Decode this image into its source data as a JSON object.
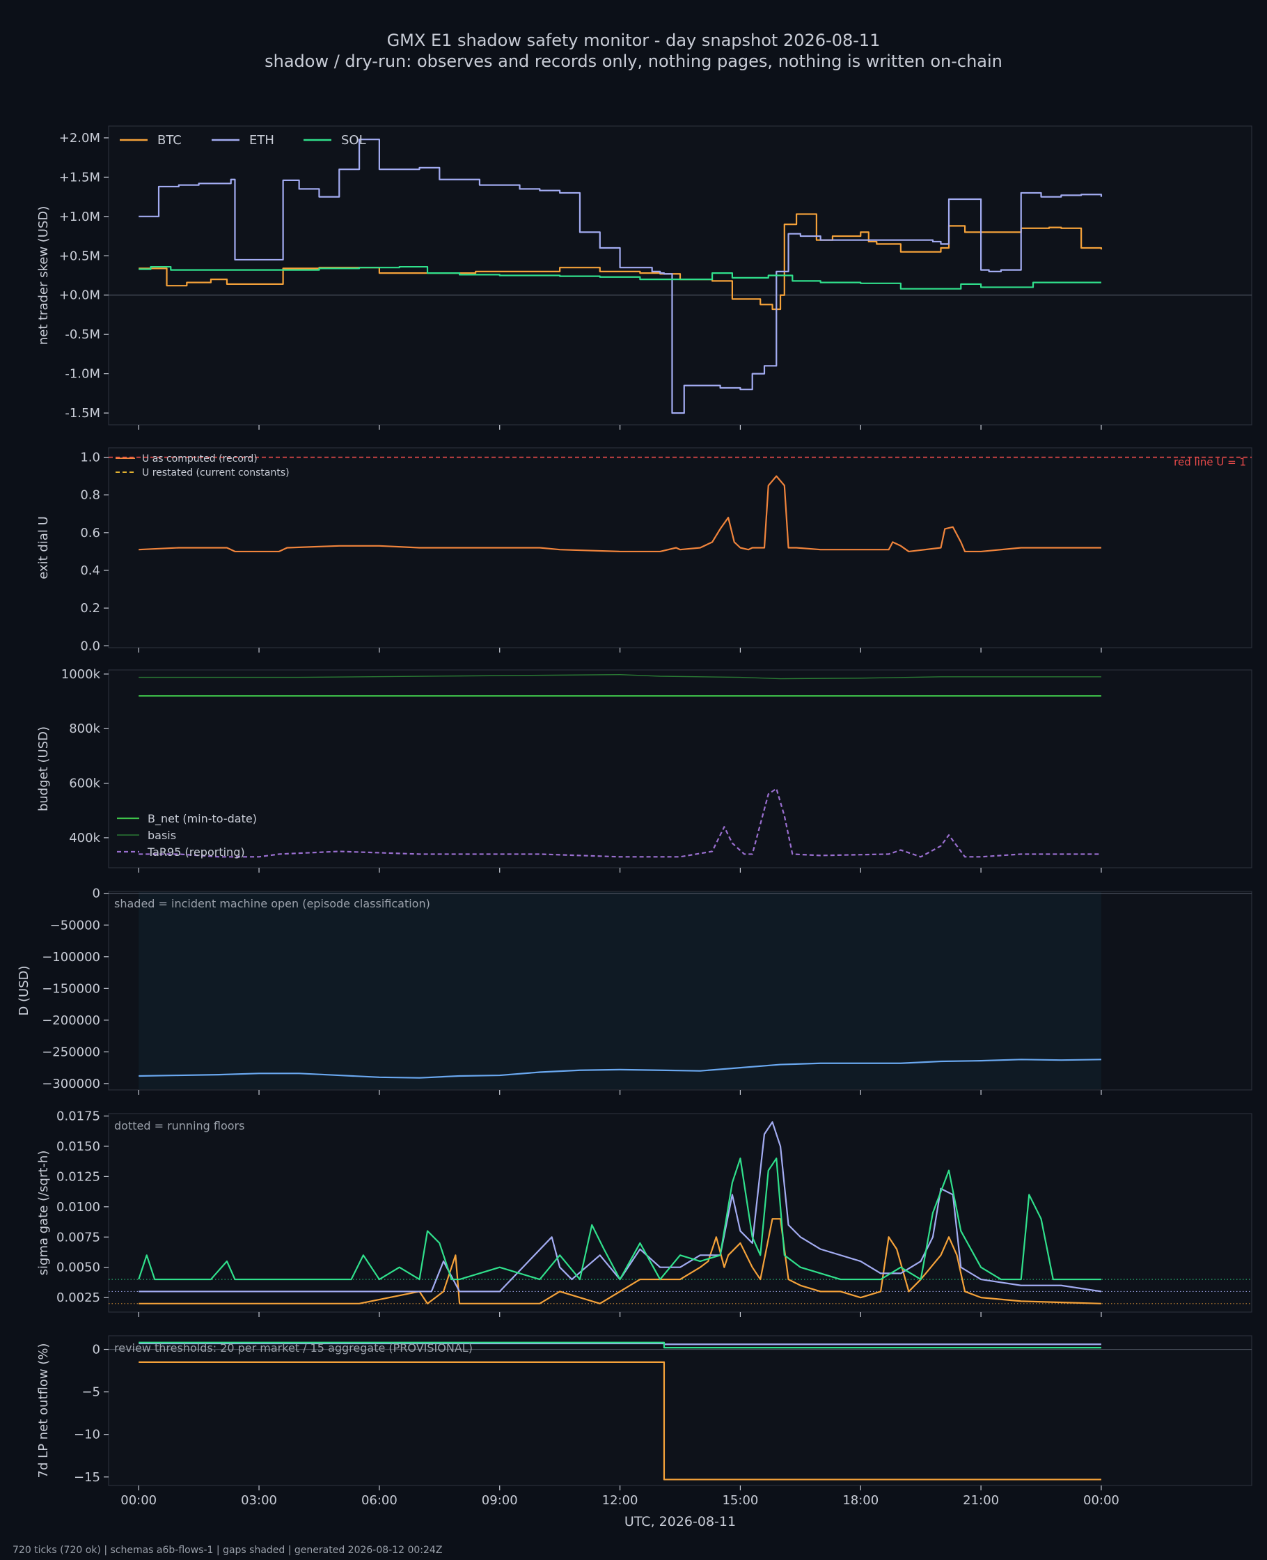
{
  "title": "GMX E1 shadow safety monitor - day snapshot 2026-08-11",
  "subtitle": "shadow / dry-run: observes and records only, nothing pages, nothing is written on-chain",
  "footer": "720 ticks (720 ok) | schemas a6b-flows-1 | gaps shaded | generated 2026-08-12 00:24Z",
  "xaxis": {
    "label": "UTC, 2026-08-11",
    "range_hours": [
      -0.75,
      27.75
    ],
    "ticks_hours": [
      0,
      3,
      6,
      9,
      12,
      15,
      18,
      21,
      24
    ],
    "tick_labels": [
      "00:00",
      "03:00",
      "06:00",
      "09:00",
      "12:00",
      "15:00",
      "18:00",
      "21:00",
      "00:00"
    ]
  },
  "colors": {
    "background": "#0c1018",
    "panel": "#0e121a",
    "frame": "#2a2f3a",
    "text": "#c8ccd6",
    "muted": "#9aa0aa",
    "BTC": "#f5a23a",
    "ETH": "#a3acf2",
    "SOL": "#30e08c",
    "U": "#f0843c",
    "redline": "#e84a4a",
    "restated": "#e0b030",
    "bnet": "#3ec24a",
    "basis": "#2a7a34",
    "tar": "#9a6fd0",
    "D": "#6aa8f0",
    "shade": "#0f1a24"
  },
  "chart_data": [
    {
      "id": "skew",
      "type": "line",
      "ylabel": "net trader skew (USD)",
      "ylim": [
        -1.65,
        2.15
      ],
      "unit": "million USD",
      "yticks": [
        2.0,
        1.5,
        1.0,
        0.5,
        0.0,
        -0.5,
        -1.0,
        -1.5
      ],
      "ytick_labels": [
        "+2.0M",
        "+1.5M",
        "+1.0M",
        "+0.5M",
        "+0.0M",
        "-0.5M",
        "-1.0M",
        "-1.5M"
      ],
      "legend": "top-left, horizontal",
      "zero_line": true,
      "series": [
        {
          "name": "BTC",
          "color_key": "BTC",
          "step": true,
          "x": [
            0,
            0.4,
            0.7,
            1.2,
            1.8,
            2.0,
            2.2,
            3.5,
            3.6,
            4.5,
            6.0,
            7.8,
            8.4,
            9.5,
            10.5,
            11.5,
            12.5,
            13.0,
            13.5,
            14.3,
            14.8,
            15.5,
            15.8,
            16.0,
            16.1,
            16.4,
            16.9,
            17.3,
            17.8,
            18.0,
            18.2,
            18.4,
            19.0,
            19.5,
            20.0,
            20.2,
            20.6,
            21.3,
            22.0,
            22.7,
            23.0,
            23.5,
            24
          ],
          "y": [
            0.34,
            0.34,
            0.12,
            0.16,
            0.2,
            0.2,
            0.14,
            0.14,
            0.34,
            0.35,
            0.28,
            0.28,
            0.3,
            0.3,
            0.35,
            0.3,
            0.28,
            0.27,
            0.2,
            0.18,
            -0.05,
            -0.12,
            -0.18,
            0.0,
            0.9,
            1.03,
            0.7,
            0.75,
            0.75,
            0.8,
            0.68,
            0.65,
            0.55,
            0.55,
            0.6,
            0.88,
            0.8,
            0.8,
            0.85,
            0.86,
            0.85,
            0.6,
            0.58
          ]
        },
        {
          "name": "ETH",
          "color_key": "ETH",
          "step": true,
          "x": [
            0,
            0.4,
            0.5,
            1.0,
            1.5,
            2.3,
            2.4,
            3.4,
            3.6,
            4.0,
            4.5,
            5.0,
            5.5,
            6.0,
            6.5,
            7.0,
            7.5,
            8.5,
            9.5,
            10.0,
            10.5,
            11.0,
            11.5,
            12.0,
            12.8,
            13.0,
            13.1,
            13.3,
            13.6,
            14.5,
            15.0,
            15.3,
            15.6,
            15.9,
            16.2,
            16.5,
            17.0,
            17.5,
            18.0,
            19.0,
            19.8,
            20.0,
            20.2,
            21.0,
            21.2,
            21.5,
            22.0,
            22.5,
            23.0,
            23.5,
            24
          ],
          "y": [
            1.0,
            1.0,
            1.38,
            1.4,
            1.42,
            1.47,
            0.45,
            0.45,
            1.46,
            1.35,
            1.25,
            1.6,
            1.98,
            1.6,
            1.6,
            1.62,
            1.47,
            1.4,
            1.35,
            1.33,
            1.3,
            0.8,
            0.6,
            0.35,
            0.3,
            0.28,
            0.27,
            -1.5,
            -1.15,
            -1.18,
            -1.2,
            -1.0,
            -0.9,
            0.3,
            0.78,
            0.75,
            0.7,
            0.7,
            0.7,
            0.7,
            0.68,
            0.65,
            1.22,
            0.32,
            0.3,
            0.32,
            1.3,
            1.25,
            1.27,
            1.28,
            1.25
          ]
        },
        {
          "name": "SOL",
          "color_key": "SOL",
          "step": true,
          "x": [
            0,
            0.3,
            0.8,
            2.0,
            4.5,
            5.5,
            6.5,
            7.2,
            8.0,
            9.0,
            10.5,
            11.5,
            12.5,
            13.5,
            14.3,
            14.8,
            15.3,
            15.7,
            16.0,
            16.3,
            17.0,
            18.0,
            19.0,
            20.0,
            20.5,
            21.0,
            22.0,
            22.3,
            24
          ],
          "y": [
            0.33,
            0.36,
            0.32,
            0.32,
            0.34,
            0.35,
            0.36,
            0.28,
            0.26,
            0.25,
            0.24,
            0.23,
            0.2,
            0.2,
            0.28,
            0.22,
            0.22,
            0.25,
            0.25,
            0.18,
            0.16,
            0.15,
            0.08,
            0.08,
            0.14,
            0.1,
            0.1,
            0.16,
            0.16
          ]
        }
      ]
    },
    {
      "id": "exitdial",
      "type": "line",
      "ylabel": "exit dial U",
      "ylim": [
        -0.01,
        1.05
      ],
      "yticks": [
        0.0,
        0.2,
        0.4,
        0.6,
        0.8,
        1.0
      ],
      "ytick_labels": [
        "0.0",
        "0.2",
        "0.4",
        "0.6",
        "0.8",
        "1.0"
      ],
      "legend": "top-left",
      "redline": {
        "value": 1.0,
        "label": "red line U = 1"
      },
      "series": [
        {
          "name": "U as computed (record)",
          "color_key": "U",
          "x": [
            0,
            1.0,
            1.5,
            2.2,
            2.4,
            3.5,
            3.7,
            5.0,
            6.0,
            7.0,
            9.0,
            10.0,
            10.5,
            12.0,
            13.0,
            13.4,
            13.5,
            14.0,
            14.3,
            14.5,
            14.7,
            14.85,
            15.0,
            15.2,
            15.3,
            15.6,
            15.7,
            15.9,
            16.1,
            16.2,
            16.4,
            17.0,
            18.0,
            18.7,
            18.8,
            19.0,
            19.2,
            20.0,
            20.1,
            20.3,
            20.5,
            20.6,
            21.0,
            22.0,
            24
          ],
          "y": [
            0.51,
            0.52,
            0.52,
            0.52,
            0.5,
            0.5,
            0.52,
            0.53,
            0.53,
            0.52,
            0.52,
            0.52,
            0.51,
            0.5,
            0.5,
            0.52,
            0.51,
            0.52,
            0.55,
            0.62,
            0.68,
            0.55,
            0.52,
            0.51,
            0.52,
            0.52,
            0.85,
            0.9,
            0.85,
            0.52,
            0.52,
            0.51,
            0.51,
            0.51,
            0.55,
            0.53,
            0.5,
            0.52,
            0.62,
            0.63,
            0.55,
            0.5,
            0.5,
            0.52,
            0.52
          ]
        },
        {
          "name": "U restated (current constants)",
          "color_key": "restated",
          "dashed": true,
          "x": [],
          "y": []
        }
      ]
    },
    {
      "id": "budget",
      "type": "line",
      "ylabel": "budget (USD)",
      "ylim": [
        290000,
        1015000
      ],
      "yticks": [
        1000000,
        800000,
        600000,
        400000
      ],
      "ytick_labels": [
        "1000k",
        "800k",
        "600k",
        "400k"
      ],
      "legend": "bottom-left",
      "series": [
        {
          "name": "B_net (min-to-date)",
          "color_key": "bnet",
          "x": [
            0,
            24
          ],
          "y": [
            920000,
            920000
          ]
        },
        {
          "name": "basis",
          "color_key": "basis",
          "x": [
            0,
            4,
            8,
            12,
            13,
            15,
            16,
            18,
            20,
            24
          ],
          "y": [
            988000,
            988000,
            993000,
            998000,
            992000,
            988000,
            983000,
            985000,
            990000,
            990000
          ]
        },
        {
          "name": "TaR95 (reporting)",
          "color_key": "tar",
          "dashed": true,
          "x": [
            0,
            1,
            2,
            3,
            3.5,
            5,
            7,
            10,
            12,
            13.5,
            14.3,
            14.6,
            14.8,
            15.1,
            15.3,
            15.7,
            15.9,
            16.1,
            16.3,
            17,
            18.7,
            19,
            19.5,
            20.0,
            20.2,
            20.6,
            21,
            22,
            24
          ],
          "y": [
            340000,
            340000,
            330000,
            330000,
            340000,
            350000,
            340000,
            340000,
            330000,
            330000,
            350000,
            440000,
            380000,
            340000,
            340000,
            560000,
            580000,
            480000,
            340000,
            335000,
            340000,
            355000,
            330000,
            370000,
            410000,
            330000,
            330000,
            340000,
            340000
          ]
        }
      ]
    },
    {
      "id": "D",
      "type": "line",
      "ylabel": "D (USD)",
      "ylim": [
        -310000,
        3000
      ],
      "yticks": [
        0,
        -50000,
        -100000,
        -150000,
        -200000,
        -250000,
        -300000
      ],
      "ytick_labels": [
        "0",
        "−50000",
        "−100000",
        "−150000",
        "−200000",
        "−250000",
        "−300000"
      ],
      "annotation": "shaded = incident machine open (episode classification)",
      "shade_range_hours": [
        0,
        24
      ],
      "zero_line": true,
      "series": [
        {
          "name": "D",
          "color_key": "D",
          "x": [
            0,
            1,
            2,
            3,
            4,
            5,
            6,
            7,
            8,
            9,
            10,
            11,
            12,
            13,
            14,
            15,
            16,
            17,
            18,
            19,
            20,
            21,
            22,
            23,
            24
          ],
          "y": [
            -288000,
            -287000,
            -286000,
            -284000,
            -284000,
            -287000,
            -290000,
            -291000,
            -288000,
            -287000,
            -282000,
            -279000,
            -278000,
            -279000,
            -280000,
            -275000,
            -270000,
            -268000,
            -268000,
            -268000,
            -265000,
            -264000,
            -262000,
            -263000,
            -262000
          ]
        }
      ]
    },
    {
      "id": "sigma",
      "type": "line",
      "ylabel": "sigma gate (/sqrt-h)",
      "ylim": [
        0.0013,
        0.0177
      ],
      "yticks": [
        0.0175,
        0.015,
        0.0125,
        0.01,
        0.0075,
        0.005,
        0.0025
      ],
      "ytick_labels": [
        "0.0175",
        "0.0150",
        "0.0125",
        "0.0100",
        "0.0075",
        "0.0050",
        "0.0025"
      ],
      "annotation": "dotted = running floors",
      "floors": [
        {
          "series": "SOL",
          "value": 0.004
        },
        {
          "series": "ETH",
          "value": 0.003
        },
        {
          "series": "BTC",
          "value": 0.002
        }
      ],
      "series": [
        {
          "name": "BTC",
          "color_key": "BTC",
          "x": [
            0,
            5.5,
            7.0,
            7.2,
            7.6,
            7.9,
            8.0,
            10.0,
            10.5,
            11.5,
            12.0,
            12.5,
            13.0,
            13.5,
            14.0,
            14.2,
            14.4,
            14.6,
            14.7,
            15.0,
            15.3,
            15.5,
            15.8,
            16.0,
            16.2,
            16.5,
            17.0,
            17.5,
            18.0,
            18.5,
            18.7,
            18.9,
            19.2,
            19.5,
            20.0,
            20.2,
            20.4,
            20.6,
            21.0,
            22.0,
            24
          ],
          "y": [
            0.002,
            0.002,
            0.003,
            0.002,
            0.003,
            0.006,
            0.002,
            0.002,
            0.003,
            0.002,
            0.003,
            0.004,
            0.004,
            0.004,
            0.005,
            0.0055,
            0.0075,
            0.005,
            0.006,
            0.007,
            0.005,
            0.004,
            0.009,
            0.009,
            0.004,
            0.0035,
            0.003,
            0.003,
            0.0025,
            0.003,
            0.0075,
            0.0065,
            0.003,
            0.004,
            0.006,
            0.0075,
            0.006,
            0.003,
            0.0025,
            0.0022,
            0.002
          ]
        },
        {
          "name": "ETH",
          "color_key": "ETH",
          "x": [
            0,
            3.0,
            7.3,
            7.6,
            8.0,
            9.0,
            10.3,
            10.5,
            10.8,
            11.5,
            12.0,
            12.5,
            13.0,
            13.5,
            14.0,
            14.5,
            14.8,
            15.0,
            15.3,
            15.6,
            15.8,
            16.0,
            16.2,
            16.5,
            17.0,
            18.0,
            18.5,
            19.0,
            19.5,
            19.8,
            20.0,
            20.3,
            20.5,
            21.0,
            22.0,
            23.0,
            24
          ],
          "y": [
            0.003,
            0.003,
            0.003,
            0.0055,
            0.003,
            0.003,
            0.0075,
            0.005,
            0.004,
            0.006,
            0.004,
            0.0065,
            0.005,
            0.005,
            0.006,
            0.006,
            0.011,
            0.008,
            0.007,
            0.016,
            0.017,
            0.015,
            0.0085,
            0.0075,
            0.0065,
            0.0055,
            0.0045,
            0.0045,
            0.0055,
            0.0075,
            0.0115,
            0.011,
            0.005,
            0.004,
            0.0035,
            0.0035,
            0.003
          ]
        },
        {
          "name": "SOL",
          "color_key": "SOL",
          "x": [
            0,
            0.2,
            0.4,
            1.8,
            2.2,
            2.4,
            5.3,
            5.6,
            6.0,
            6.5,
            7.0,
            7.2,
            7.5,
            7.8,
            8.0,
            9.0,
            10.0,
            10.5,
            11.0,
            11.3,
            11.6,
            12.0,
            12.5,
            13.0,
            13.5,
            14.0,
            14.5,
            14.8,
            15.0,
            15.3,
            15.5,
            15.7,
            15.9,
            16.1,
            16.5,
            17.5,
            18.5,
            19.0,
            19.5,
            19.8,
            20.2,
            20.5,
            21.0,
            21.5,
            22.0,
            22.2,
            22.5,
            22.8,
            24
          ],
          "y": [
            0.004,
            0.006,
            0.004,
            0.004,
            0.0055,
            0.004,
            0.004,
            0.006,
            0.004,
            0.005,
            0.004,
            0.008,
            0.007,
            0.004,
            0.004,
            0.005,
            0.004,
            0.006,
            0.004,
            0.0085,
            0.0065,
            0.004,
            0.007,
            0.004,
            0.006,
            0.0055,
            0.006,
            0.012,
            0.014,
            0.0075,
            0.006,
            0.013,
            0.014,
            0.006,
            0.005,
            0.004,
            0.004,
            0.005,
            0.004,
            0.0095,
            0.013,
            0.008,
            0.005,
            0.004,
            0.004,
            0.011,
            0.009,
            0.004,
            0.004
          ]
        }
      ]
    },
    {
      "id": "lp",
      "type": "line",
      "ylabel": "7d LP net outflow (%)",
      "ylim": [
        -16.0,
        1.6
      ],
      "yticks": [
        0,
        -5,
        -10,
        -15
      ],
      "ytick_labels": [
        "0",
        "−5",
        "−10",
        "−15"
      ],
      "annotation": "review thresholds: 20 per market / 15 aggregate (PROVISIONAL)",
      "zero_line": true,
      "series": [
        {
          "name": "BTC",
          "color_key": "BTC",
          "step": true,
          "x": [
            0,
            13.1,
            24
          ],
          "y": [
            -1.5,
            -15.3,
            -15.3
          ]
        },
        {
          "name": "ETH",
          "color_key": "ETH",
          "step": true,
          "x": [
            0,
            13.1,
            24
          ],
          "y": [
            0.7,
            0.6,
            0.6
          ]
        },
        {
          "name": "SOL",
          "color_key": "SOL",
          "step": true,
          "x": [
            0,
            13.1,
            24
          ],
          "y": [
            0.8,
            0.2,
            0.2
          ]
        }
      ]
    }
  ]
}
